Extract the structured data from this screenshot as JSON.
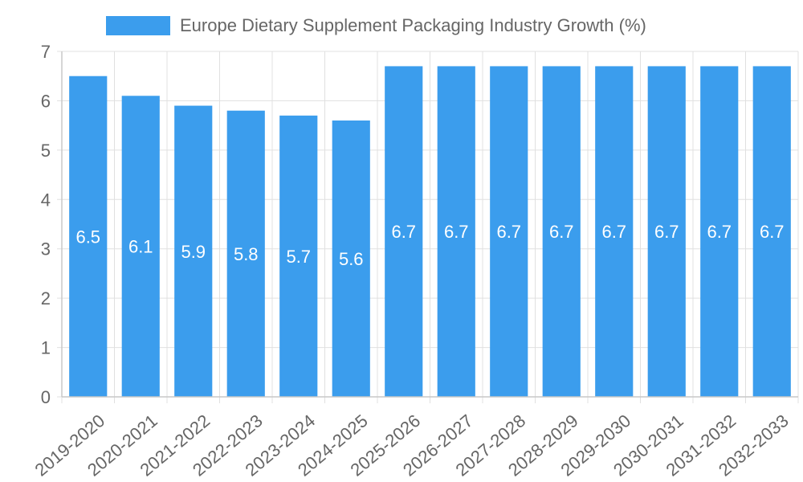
{
  "chart_data": {
    "type": "bar",
    "title": "",
    "xlabel": "",
    "ylabel": "",
    "legend": {
      "label": "Europe Dietary Supplement Packaging Industry Growth (%)",
      "position": "top-center"
    },
    "categories": [
      "2019-2020",
      "2020-2021",
      "2021-2022",
      "2022-2023",
      "2023-2024",
      "2024-2025",
      "2025-2026",
      "2026-2027",
      "2027-2028",
      "2028-2029",
      "2029-2030",
      "2030-2031",
      "2031-2032",
      "2032-2033"
    ],
    "values": [
      6.5,
      6.1,
      5.9,
      5.8,
      5.7,
      5.6,
      6.7,
      6.7,
      6.7,
      6.7,
      6.7,
      6.7,
      6.7,
      6.7
    ],
    "data_labels": [
      "6.5",
      "6.1",
      "5.9",
      "5.8",
      "5.7",
      "5.6",
      "6.7",
      "6.7",
      "6.7",
      "6.7",
      "6.7",
      "6.7",
      "6.7",
      "6.7"
    ],
    "ylim": [
      0,
      7
    ],
    "yticks": [
      0,
      1,
      2,
      3,
      4,
      5,
      6,
      7
    ],
    "grid": true,
    "colors": {
      "bar": "#3b9ded",
      "grid": "#e0e0e0",
      "axis": "#c8c8c8"
    }
  }
}
